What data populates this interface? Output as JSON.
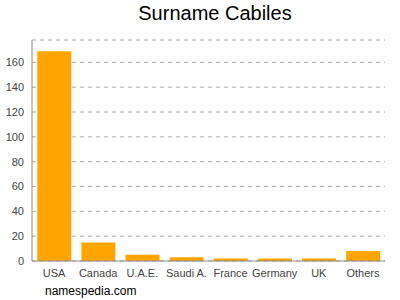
{
  "chart_data": {
    "type": "bar",
    "title": "Surname Cabiles",
    "annotation": "namespedia.com",
    "categories": [
      "USA",
      "Canada",
      "U.A.E.",
      "Saudi A.",
      "France",
      "Germany",
      "UK",
      "Others"
    ],
    "values": [
      169,
      15,
      5,
      3,
      2,
      2,
      2,
      8
    ],
    "color": "#ffa500",
    "ylim": [
      0,
      178
    ],
    "yticks": [
      0,
      20,
      40,
      60,
      80,
      100,
      120,
      140,
      160
    ],
    "grid": true
  }
}
